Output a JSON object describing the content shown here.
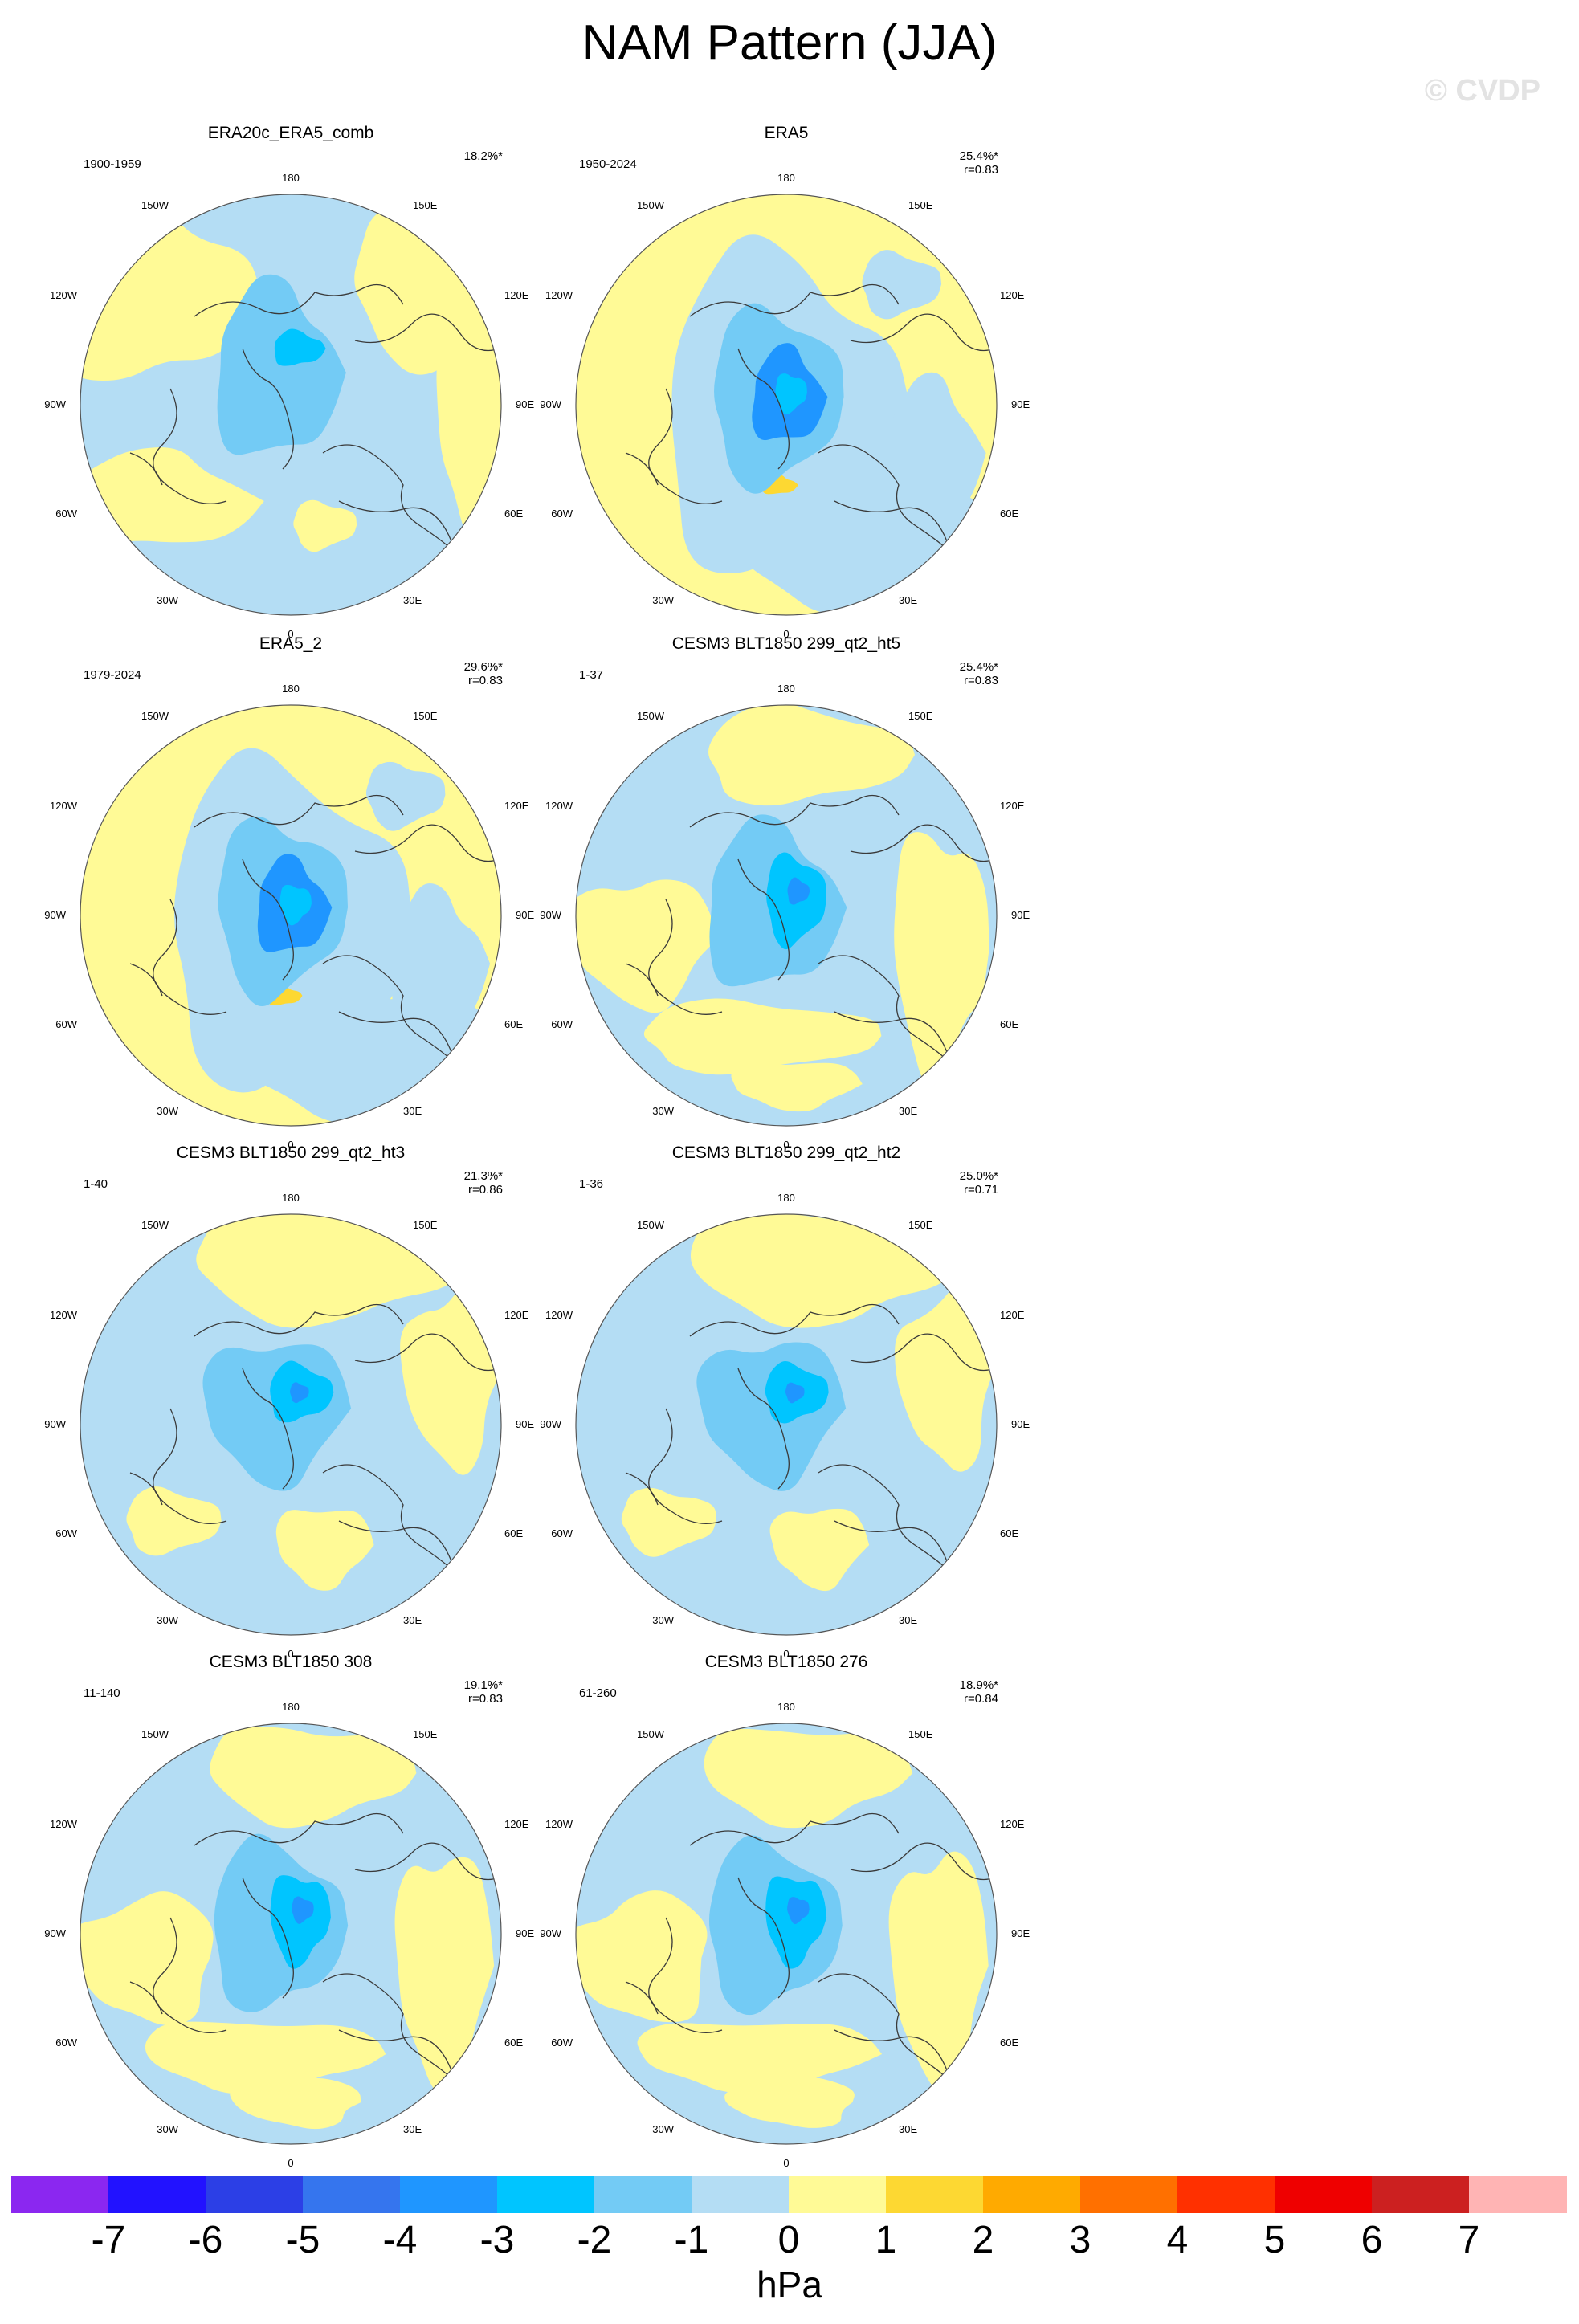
{
  "title": "NAM Pattern (JJA)",
  "watermark": "© CVDP",
  "colors": {
    "ocean_border": "#555555",
    "coast": "#3a3a3a",
    "levels": [
      "#8b27f0",
      "#2212ff",
      "#2c3fe6",
      "#3575ee",
      "#1f96ff",
      "#00c5ff",
      "#73cbf5",
      "#b4ddf4",
      "#fffa96",
      "#fdd832",
      "#ffaa00",
      "#ff7000",
      "#ff3000",
      "#ef0000",
      "#cc2020",
      "#ffb4b4"
    ]
  },
  "colorbar": {
    "labels": [
      "-7",
      "-6",
      "-5",
      "-4",
      "-3",
      "-2",
      "-1",
      "0",
      "1",
      "2",
      "3",
      "4",
      "5",
      "6",
      "7"
    ],
    "units": "hPa"
  },
  "lon_labels": [
    "180",
    "150E",
    "120E",
    "90E",
    "60E",
    "30E",
    "0",
    "30W",
    "60W",
    "90W",
    "120W",
    "150W"
  ],
  "panels": [
    {
      "title": "ERA20c_ERA5_comb",
      "period": "1900-1959",
      "pct": "18.2%*",
      "r": "",
      "variant": 0
    },
    {
      "title": "ERA5",
      "period": "1950-2024",
      "pct": "25.4%*",
      "r": "r=0.83",
      "variant": 1
    },
    {
      "title": "ERA5_2",
      "period": "1979-2024",
      "pct": "29.6%*",
      "r": "r=0.83",
      "variant": 1
    },
    {
      "title": "CESM3 BLT1850 299_qt2_ht5",
      "period": "1-37",
      "pct": "25.4%*",
      "r": "r=0.83",
      "variant": 2
    },
    {
      "title": "CESM3 BLT1850 299_qt2_ht3",
      "period": "1-40",
      "pct": "21.3%*",
      "r": "r=0.86",
      "variant": 3
    },
    {
      "title": "CESM3 BLT1850 299_qt2_ht2",
      "period": "1-36",
      "pct": "25.0%*",
      "r": "r=0.71",
      "variant": 3
    },
    {
      "title": "CESM3 BLT1850 308",
      "period": "11-140",
      "pct": "19.1%*",
      "r": "r=0.83",
      "variant": 2
    },
    {
      "title": "CESM3 BLT1850 276",
      "period": "61-260",
      "pct": "18.9%*",
      "r": "r=0.84",
      "variant": 2
    }
  ]
}
